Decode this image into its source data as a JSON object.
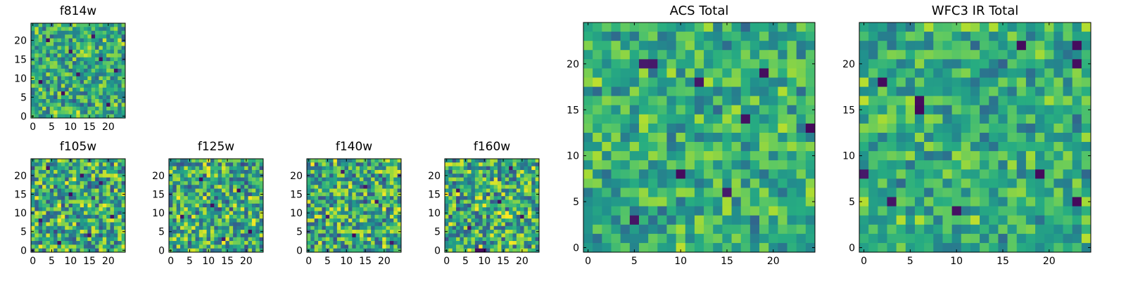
{
  "chart_data": [
    {
      "id": "f814w",
      "type": "heatmap",
      "title": "f814w",
      "grid_size": 25,
      "xlim": [
        0,
        24
      ],
      "ylim": [
        0,
        24
      ],
      "xticks": [
        0,
        5,
        10,
        15,
        20
      ],
      "yticks": [
        0,
        5,
        10,
        15,
        20
      ],
      "colormap": "viridis",
      "seed": 814,
      "contrast": 0.55,
      "dark_cells": [
        [
          4,
          20
        ],
        [
          16,
          21
        ],
        [
          12,
          11
        ],
        [
          8,
          6
        ],
        [
          20,
          3
        ],
        [
          2,
          9
        ],
        [
          18,
          15
        ],
        [
          10,
          17
        ],
        [
          22,
          12
        ]
      ],
      "values": "25x25 pseudo-random pixel intensities (noise)"
    },
    {
      "id": "f105w",
      "type": "heatmap",
      "title": "f105w",
      "grid_size": 25,
      "xlim": [
        0,
        24
      ],
      "ylim": [
        0,
        24
      ],
      "xticks": [
        0,
        5,
        10,
        15,
        20
      ],
      "yticks": [
        0,
        5,
        10,
        15,
        20
      ],
      "colormap": "viridis",
      "seed": 105,
      "contrast": 0.7,
      "dark_cells": [
        [
          4,
          22
        ],
        [
          10,
          15
        ],
        [
          13,
          20
        ],
        [
          2,
          8
        ],
        [
          15,
          4
        ],
        [
          21,
          9
        ],
        [
          7,
          2
        ],
        [
          18,
          18
        ]
      ],
      "values": "25x25 pseudo-random pixel intensities (noise)"
    },
    {
      "id": "f125w",
      "type": "heatmap",
      "title": "f125w",
      "grid_size": 25,
      "xlim": [
        0,
        24
      ],
      "ylim": [
        0,
        24
      ],
      "xticks": [
        0,
        5,
        10,
        15,
        20
      ],
      "yticks": [
        0,
        5,
        10,
        15,
        20
      ],
      "colormap": "viridis",
      "seed": 125,
      "contrast": 0.7,
      "dark_cells": [
        [
          11,
          12
        ],
        [
          3,
          9
        ],
        [
          18,
          16
        ],
        [
          21,
          5
        ],
        [
          8,
          19
        ],
        [
          14,
          3
        ]
      ],
      "values": "25x25 pseudo-random pixel intensities (noise)"
    },
    {
      "id": "f140w",
      "type": "heatmap",
      "title": "f140w",
      "grid_size": 25,
      "xlim": [
        0,
        24
      ],
      "ylim": [
        0,
        24
      ],
      "xticks": [
        0,
        5,
        10,
        15,
        20
      ],
      "yticks": [
        0,
        5,
        10,
        15,
        20
      ],
      "colormap": "viridis",
      "seed": 140,
      "contrast": 0.7,
      "dark_cells": [
        [
          18,
          13
        ],
        [
          5,
          9
        ],
        [
          12,
          4
        ],
        [
          22,
          2
        ],
        [
          9,
          21
        ],
        [
          15,
          17
        ]
      ],
      "values": "25x25 pseudo-random pixel intensities (noise)"
    },
    {
      "id": "f160w",
      "type": "heatmap",
      "title": "f160w",
      "grid_size": 25,
      "xlim": [
        0,
        24
      ],
      "ylim": [
        0,
        24
      ],
      "xticks": [
        0,
        5,
        10,
        15,
        20
      ],
      "yticks": [
        0,
        5,
        10,
        15,
        20
      ],
      "colormap": "viridis",
      "seed": 160,
      "contrast": 0.7,
      "dark_cells": [
        [
          9,
          0
        ],
        [
          10,
          0
        ],
        [
          8,
          0
        ],
        [
          14,
          13
        ],
        [
          20,
          9
        ],
        [
          3,
          16
        ],
        [
          17,
          22
        ],
        [
          6,
          6
        ]
      ],
      "values": "25x25 pseudo-random pixel intensities (noise)"
    },
    {
      "id": "acs_total",
      "type": "heatmap",
      "title": "ACS Total",
      "grid_size": 25,
      "xlim": [
        0,
        24
      ],
      "ylim": [
        0,
        24
      ],
      "xticks": [
        0,
        5,
        10,
        15,
        20
      ],
      "yticks": [
        0,
        5,
        10,
        15,
        20
      ],
      "colormap": "viridis",
      "seed": 901,
      "contrast": 0.45,
      "dark_cells": [
        [
          6,
          20
        ],
        [
          7,
          20
        ],
        [
          19,
          19
        ],
        [
          12,
          18
        ],
        [
          10,
          8
        ],
        [
          15,
          6
        ],
        [
          5,
          3
        ],
        [
          24,
          13
        ],
        [
          17,
          14
        ]
      ],
      "values": "25x25 pseudo-random pixel intensities (noise)"
    },
    {
      "id": "wfc3_ir_total",
      "type": "heatmap",
      "title": "WFC3 IR Total",
      "grid_size": 25,
      "xlim": [
        0,
        24
      ],
      "ylim": [
        0,
        24
      ],
      "xticks": [
        0,
        5,
        10,
        15,
        20
      ],
      "yticks": [
        0,
        5,
        10,
        15,
        20
      ],
      "colormap": "viridis",
      "seed": 902,
      "contrast": 0.45,
      "dark_cells": [
        [
          0,
          8
        ],
        [
          6,
          16
        ],
        [
          6,
          15
        ],
        [
          17,
          22
        ],
        [
          23,
          22
        ],
        [
          23,
          20
        ],
        [
          3,
          5
        ],
        [
          23,
          5
        ],
        [
          19,
          8
        ],
        [
          10,
          4
        ],
        [
          2,
          18
        ]
      ],
      "values": "25x25 pseudo-random pixel intensities (noise)"
    }
  ]
}
